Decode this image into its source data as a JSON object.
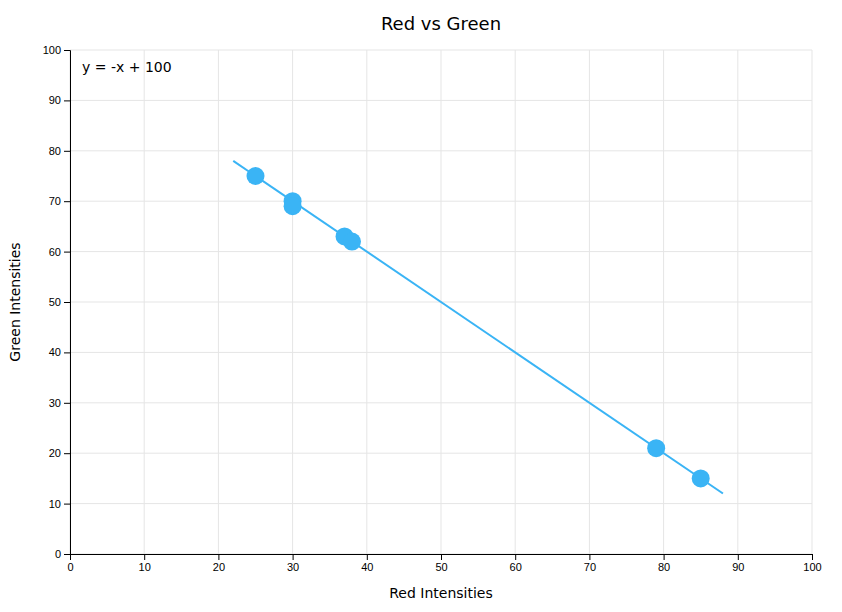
{
  "chart_data": {
    "type": "scatter",
    "title": "Red vs Green",
    "xlabel": "Red Intensities",
    "ylabel": "Green Intensities",
    "annotation": "y = -x + 100",
    "xlim": [
      0,
      100
    ],
    "ylim": [
      0,
      100
    ],
    "xticks": [
      0,
      10,
      20,
      30,
      40,
      50,
      60,
      70,
      80,
      90,
      100
    ],
    "yticks": [
      0,
      10,
      20,
      30,
      40,
      50,
      60,
      70,
      80,
      90,
      100
    ],
    "grid": true,
    "series": [
      {
        "type": "line",
        "color": "#3ab4f5",
        "x": [
          22,
          88
        ],
        "values": [
          78,
          12
        ]
      },
      {
        "type": "scatter",
        "color": "#3ab4f5",
        "x": [
          25,
          30,
          30,
          37,
          38,
          79,
          85
        ],
        "values": [
          75,
          70,
          69,
          63,
          62,
          21,
          15
        ]
      }
    ]
  }
}
